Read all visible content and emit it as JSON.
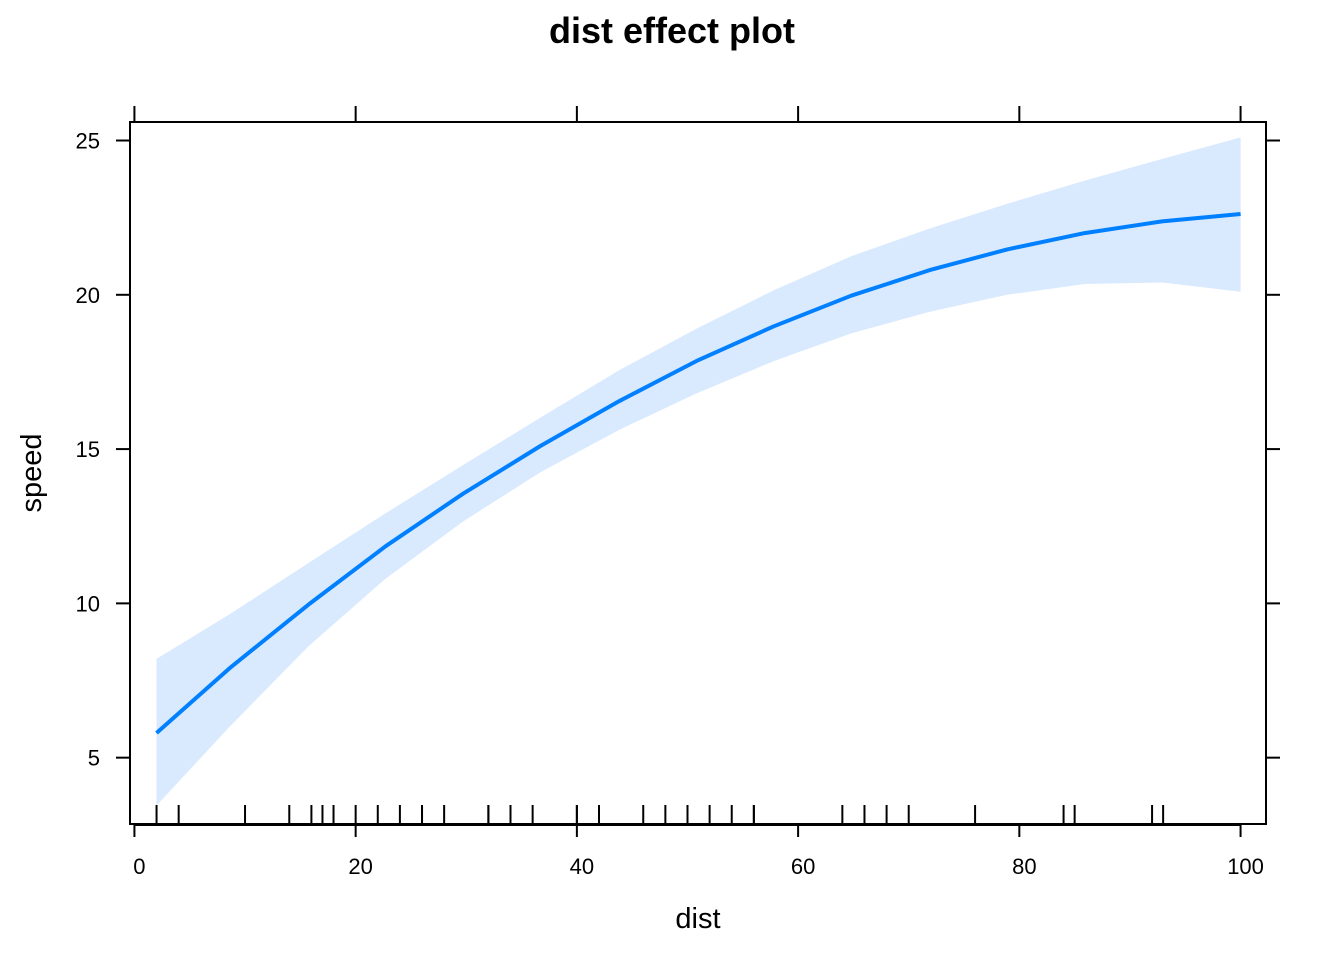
{
  "chart_data": {
    "type": "line",
    "title": "dist effect plot",
    "xlabel": "dist",
    "ylabel": "speed",
    "xlim": [
      -0.4,
      102.3
    ],
    "ylim": [
      2.85,
      25.6
    ],
    "xticks": [
      0,
      20,
      40,
      60,
      80,
      100
    ],
    "yticks": [
      5,
      10,
      15,
      20,
      25
    ],
    "grid": false,
    "colors": {
      "line": "#0080ff",
      "band": "#d9eaff",
      "axis": "#000000"
    },
    "series": [
      {
        "x": [
          2,
          8.6,
          15.7,
          22.7,
          29.7,
          36.7,
          43.8,
          50.8,
          57.8,
          64.8,
          71.9,
          78.9,
          85.9,
          92.9,
          100
        ],
        "values": [
          5.8,
          7.9,
          9.95,
          11.85,
          13.55,
          15.1,
          16.55,
          17.85,
          18.98,
          19.97,
          20.8,
          21.47,
          22.0,
          22.38,
          22.62
        ],
        "lower": [
          3.45,
          6.0,
          8.6,
          10.8,
          12.65,
          14.25,
          15.62,
          16.8,
          17.85,
          18.75,
          19.45,
          20.0,
          20.35,
          20.4,
          20.1
        ],
        "upper": [
          8.2,
          9.65,
          11.3,
          12.92,
          14.48,
          16.02,
          17.55,
          18.9,
          20.15,
          21.25,
          22.15,
          22.95,
          23.7,
          24.4,
          25.1
        ]
      }
    ],
    "rug": [
      2,
      4,
      10,
      14,
      16,
      17,
      18,
      20,
      22,
      24,
      26,
      26,
      28,
      32,
      32,
      34,
      34,
      36,
      40,
      40,
      42,
      46,
      48,
      50,
      52,
      54,
      56,
      56,
      64,
      66,
      68,
      70,
      76,
      84,
      85,
      92,
      93
    ]
  }
}
